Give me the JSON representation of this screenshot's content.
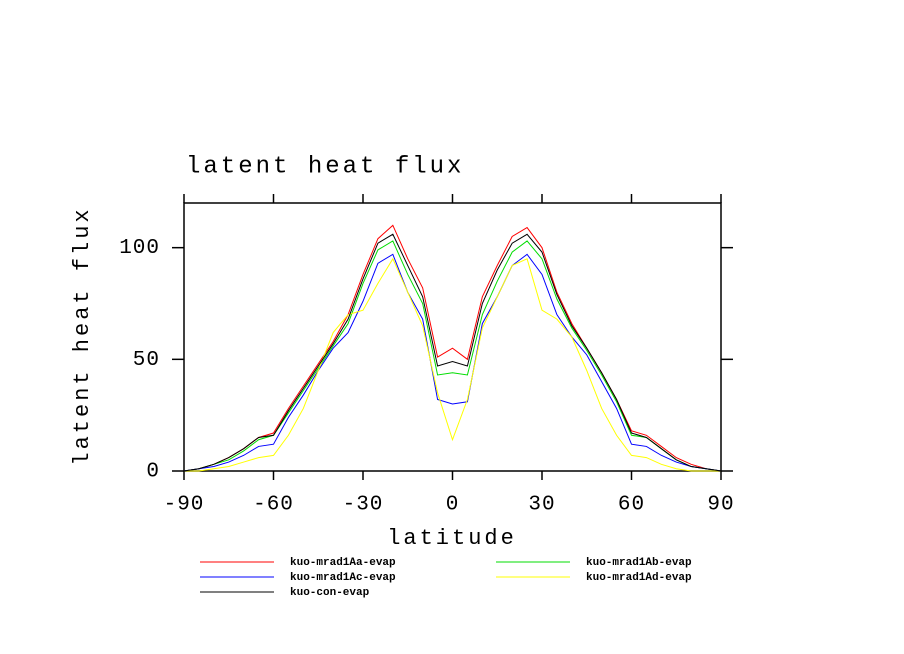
{
  "chart_data": {
    "type": "line",
    "title": "latent heat flux",
    "x_label": "latitude",
    "y_label": "latent heat flux",
    "x": [
      -90,
      -85,
      -80,
      -75,
      -70,
      -65,
      -60,
      -55,
      -50,
      -45,
      -40,
      -35,
      -30,
      -25,
      -20,
      -15,
      -10,
      -5,
      0,
      5,
      10,
      15,
      20,
      25,
      30,
      35,
      40,
      45,
      50,
      55,
      60,
      65,
      70,
      75,
      80,
      85,
      90
    ],
    "xlim": [
      -90,
      90
    ],
    "xticks": [
      -90,
      -60,
      -30,
      0,
      30,
      60,
      90
    ],
    "ylim": [
      0,
      120
    ],
    "yticks": [
      0,
      50,
      100
    ],
    "series": [
      {
        "name": "kuo-mrad1Aa-evap",
        "color": "#ff0000",
        "values": [
          0,
          1,
          3,
          6,
          10,
          15,
          17,
          28,
          38,
          48,
          58,
          70,
          88,
          104,
          110,
          95,
          82,
          51,
          55,
          50,
          78,
          92,
          105,
          109,
          100,
          80,
          66,
          55,
          44,
          32,
          18,
          16,
          11,
          6,
          3,
          1,
          0
        ]
      },
      {
        "name": "kuo-mrad1Ab-evap",
        "color": "#00dd00",
        "values": [
          0,
          1,
          3,
          5,
          9,
          14,
          16,
          26,
          36,
          46,
          56,
          66,
          84,
          99,
          103,
          88,
          75,
          43,
          44,
          43,
          70,
          85,
          98,
          103,
          95,
          77,
          64,
          54,
          43,
          31,
          16,
          15,
          10,
          5,
          2,
          1,
          0
        ]
      },
      {
        "name": "kuo-mrad1Ac-evap",
        "color": "#0000ff",
        "values": [
          0,
          1,
          2,
          4,
          7,
          11,
          12,
          24,
          34,
          45,
          55,
          62,
          76,
          93,
          97,
          80,
          68,
          32,
          30,
          31,
          66,
          78,
          92,
          97,
          88,
          70,
          60,
          52,
          40,
          28,
          12,
          11,
          7,
          4,
          2,
          1,
          0
        ]
      },
      {
        "name": "kuo-mrad1Ad-evap",
        "color": "#ffff00",
        "values": [
          0,
          0,
          1,
          2,
          4,
          6,
          7,
          16,
          28,
          45,
          62,
          70,
          72,
          84,
          95,
          80,
          65,
          35,
          14,
          32,
          64,
          78,
          92,
          95,
          72,
          68,
          60,
          45,
          28,
          16,
          7,
          6,
          3,
          1,
          0,
          0,
          0
        ]
      },
      {
        "name": "kuo-con-evap",
        "color": "#000000",
        "values": [
          0,
          1,
          3,
          6,
          10,
          15,
          16,
          27,
          37,
          47,
          57,
          68,
          86,
          102,
          106,
          92,
          78,
          47,
          49,
          47,
          75,
          90,
          102,
          106,
          98,
          79,
          65,
          55,
          44,
          32,
          17,
          15,
          10,
          5,
          2,
          1,
          0
        ]
      }
    ]
  }
}
